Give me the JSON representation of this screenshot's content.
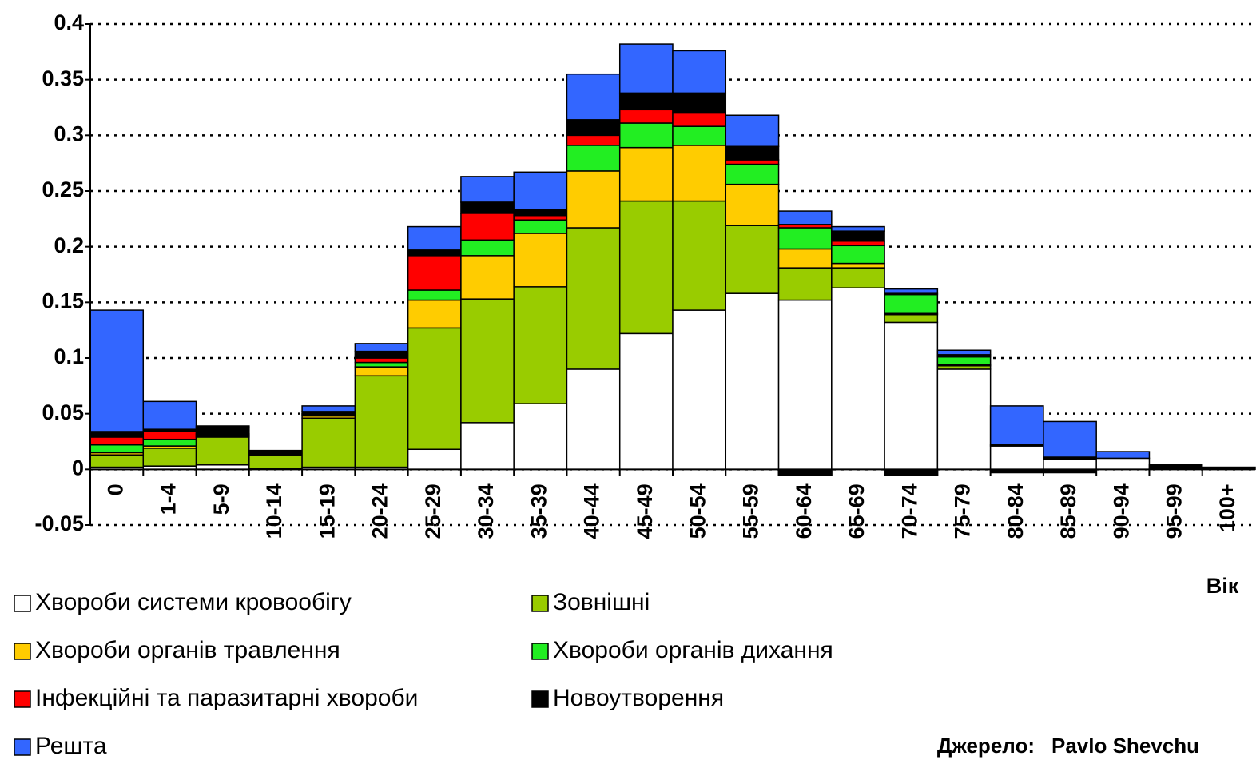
{
  "chart_data": {
    "type": "stacked_bar",
    "x_label": "Вік",
    "source_label": "Джерело:",
    "source": "Pavlo Shevchu",
    "categories": [
      "0",
      "1-4",
      "5-9",
      "10-14",
      "15-19",
      "20-24",
      "25-29",
      "30-34",
      "35-39",
      "40-44",
      "45-49",
      "50-54",
      "55-59",
      "60-64",
      "65-69",
      "70-74",
      "75-79",
      "80-84",
      "85-89",
      "90-94",
      "95-99",
      "100+"
    ],
    "ylim": [
      -0.05,
      0.4
    ],
    "yticks": [
      0.4,
      0.35,
      0.3,
      0.25,
      0.2,
      0.15,
      0.1,
      0.05,
      0,
      -0.05
    ],
    "grid": true,
    "series": [
      {
        "name": "Хвороби системи кровообігу",
        "color": "#ffffff",
        "values": [
          0.002,
          0.003,
          0.004,
          0.001,
          0.002,
          0.002,
          0.018,
          0.042,
          0.059,
          0.09,
          0.122,
          0.143,
          0.158,
          0.152,
          0.163,
          0.132,
          0.09,
          0.021,
          0.009,
          0.01,
          0.001,
          0
        ]
      },
      {
        "name": "Зовнішні",
        "color": "#99cc00",
        "values": [
          0.011,
          0.016,
          0.025,
          0.012,
          0.044,
          0.082,
          0.109,
          0.111,
          0.105,
          0.127,
          0.119,
          0.098,
          0.061,
          0.029,
          0.018,
          0.007,
          0.003,
          0.001,
          0.001,
          0,
          0,
          0
        ]
      },
      {
        "name": "Хвороби органів травлення",
        "color": "#ffcc00",
        "values": [
          0.002,
          0.002,
          0.001,
          0.001,
          0.002,
          0.008,
          0.025,
          0.039,
          0.048,
          0.051,
          0.048,
          0.05,
          0.037,
          0.017,
          0.004,
          0.001,
          0.001,
          0,
          0,
          0,
          0,
          0
        ]
      },
      {
        "name": "Хвороби органів дихання",
        "color": "#22ee22",
        "values": [
          0.007,
          0.006,
          0.001,
          0.001,
          0.001,
          0.004,
          0.009,
          0.014,
          0.012,
          0.023,
          0.022,
          0.017,
          0.018,
          0.019,
          0.016,
          0.017,
          0.007,
          0,
          0.001,
          0,
          0,
          0
        ]
      },
      {
        "name": "Інфекційні та паразитарні хвороби",
        "color": "#ff0000",
        "values": [
          0.007,
          0.007,
          0.001,
          0,
          0.001,
          0.004,
          0.031,
          0.024,
          0.004,
          0.009,
          0.012,
          0.012,
          0.004,
          0.003,
          0.004,
          0.001,
          0.001,
          0,
          0,
          0,
          0,
          0
        ]
      },
      {
        "name": "Новоутворення",
        "color": "#000000",
        "values": [
          0.005,
          0.002,
          0.006,
          0.001,
          0.002,
          0.006,
          0.005,
          0.01,
          0.005,
          0.014,
          0.015,
          0.018,
          0.012,
          -0.005,
          0.009,
          -0.005,
          0.001,
          -0.003,
          -0.003,
          0,
          0.003,
          0.002
        ]
      },
      {
        "name": "Решта",
        "color": "#3366ff",
        "values": [
          0.109,
          0.025,
          0.001,
          0.001,
          0.005,
          0.007,
          0.021,
          0.023,
          0.034,
          0.041,
          0.044,
          0.038,
          0.028,
          0.012,
          0.004,
          0.004,
          0.004,
          0.035,
          0.032,
          0.006,
          0,
          0
        ]
      }
    ]
  }
}
